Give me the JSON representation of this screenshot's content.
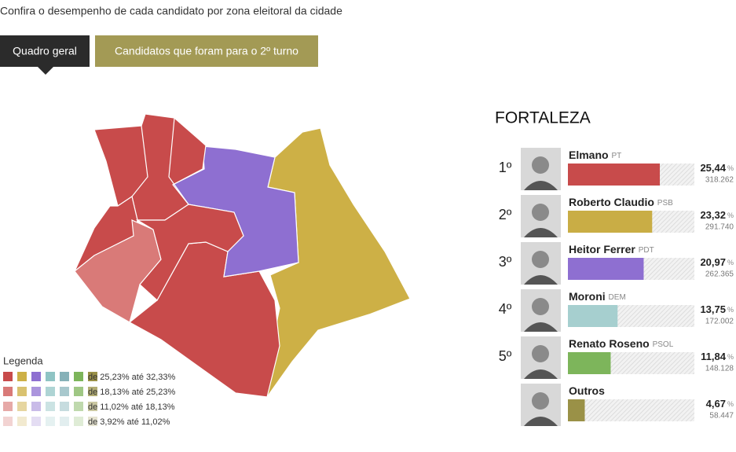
{
  "header": {
    "intro": "Confira o desempenho de cada candidato por zona eleitoral da cidade"
  },
  "tabs": [
    "Quadro geral",
    "Candidatos que foram para o 2º turno"
  ],
  "legend": {
    "title": "Legenda",
    "rows": [
      "de 25,23% até 32,33%",
      "de 18,13% até 25,23%",
      "de 11,02% até 18,13%",
      "de 3,92% até 11,02%"
    ]
  },
  "ranking": {
    "title": "FORTALEZA",
    "unit": "%",
    "candidates": [
      {
        "rank": "1º",
        "name": "Elmano",
        "party": "PT",
        "percent": {
          "value": 25.44,
          "label": "25,44"
        },
        "votes": "318.262",
        "color": "#c84b4b"
      },
      {
        "rank": "2º",
        "name": "Roberto Claudio",
        "party": "PSB",
        "percent": {
          "value": 23.32,
          "label": "23,32"
        },
        "votes": "291.740",
        "color": "#c9ad45"
      },
      {
        "rank": "3º",
        "name": "Heitor Ferrer",
        "party": "PDT",
        "percent": {
          "value": 20.97,
          "label": "20,97"
        },
        "votes": "262.365",
        "color": "#8e6fd1"
      },
      {
        "rank": "4º",
        "name": "Moroni",
        "party": "DEM",
        "percent": {
          "value": 13.75,
          "label": "13,75"
        },
        "votes": "172.002",
        "color": "#a6cfcf"
      },
      {
        "rank": "5º",
        "name": "Renato Roseno",
        "party": "PSOL",
        "percent": {
          "value": 11.84,
          "label": "11,84"
        },
        "votes": "148.128",
        "color": "#7db55b"
      },
      {
        "name": "Outros",
        "percent": {
          "value": 4.67,
          "label": "4,67"
        },
        "votes": "58.447",
        "color": "#9a9147"
      }
    ]
  }
}
